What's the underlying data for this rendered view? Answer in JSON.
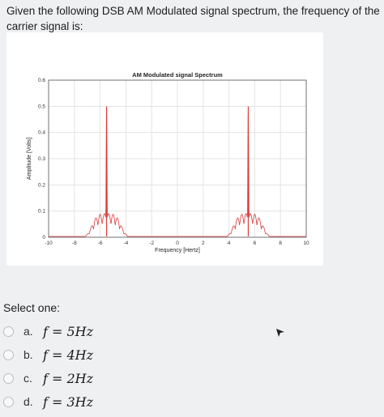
{
  "question": {
    "text": "Given the following DSB AM Modulated signal spectrum, the frequency of the carrier signal is:"
  },
  "chart_data": {
    "type": "line",
    "title": "AM Modulated signal Spectrum",
    "xlabel": "Frequency [Hertz]",
    "ylabel": "Amplitude [Volts]",
    "xlim": [
      -10,
      10
    ],
    "ylim": [
      0,
      0.6
    ],
    "xticks": [
      "-10",
      "-8",
      "-6",
      "-4",
      "-2",
      "0",
      "2",
      "4",
      "6",
      "8",
      "10"
    ],
    "yticks": [
      "0",
      "0.1",
      "0.2",
      "0.3",
      "0.4",
      "0.5",
      "0.6"
    ],
    "grid": true,
    "series": [
      {
        "color": "#d93a3a",
        "description_points": {
          "x": [
            -10,
            -8,
            -7.5,
            -7,
            -6.5,
            -6,
            -5.5,
            -5,
            -4.5,
            -4,
            -3.5,
            -2,
            0,
            2,
            3.5,
            4,
            4.5,
            5,
            5.5,
            6,
            6.5,
            7,
            7.5,
            8,
            10
          ],
          "y": [
            0.003,
            0.004,
            0.01,
            0.06,
            0.08,
            0.1,
            0.5,
            0.1,
            0.08,
            0.06,
            0.01,
            0.004,
            0.003,
            0.004,
            0.01,
            0.06,
            0.08,
            0.1,
            0.5,
            0.1,
            0.08,
            0.06,
            0.01,
            0.004,
            0.003
          ]
        }
      }
    ]
  },
  "prompt": {
    "select_label": "Select one:"
  },
  "options": [
    {
      "letter": "a.",
      "math": "f = 5Hz"
    },
    {
      "letter": "b.",
      "math": "f = 4Hz"
    },
    {
      "letter": "c.",
      "math": "f = 2Hz"
    },
    {
      "letter": "d.",
      "math": "f = 3Hz"
    }
  ]
}
